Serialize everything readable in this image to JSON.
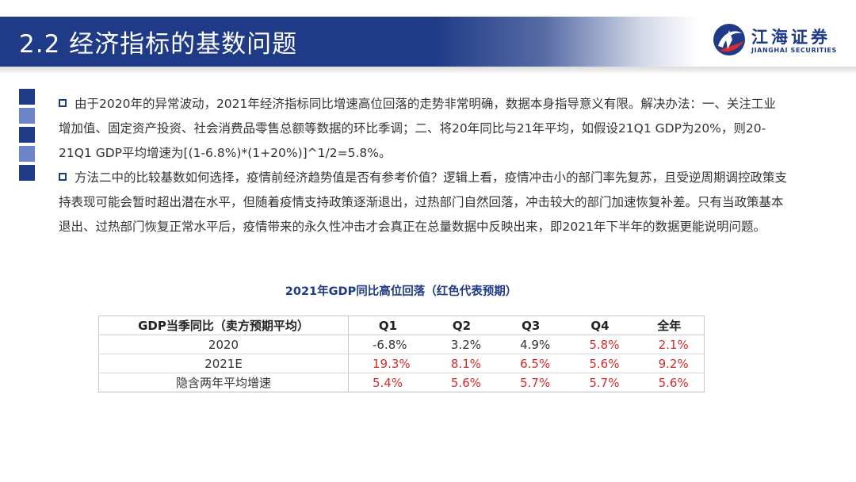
{
  "header": {
    "title": "2.2 经济指标的基数问题",
    "logo_cn": "江海证券",
    "logo_en": "JIANGHAI SECURITIES",
    "brand_color": "#1f3a86"
  },
  "paragraphs": [
    "由于2020年的异常波动，2021年经济指标同比增速高位回落的走势非常明确，数据本身指导意义有限。解决办法：一、关注工业增加值、固定资产投资、社会消费品零售总额等数据的环比季调；二、将20年同比与21年平均，如假设21Q1 GDP为20%，则20-21Q1 GDP平均增速为[(1-6.8%)*(1+20%)]^1/2=5.8%。",
    "方法二中的比较基数如何选择，疫情前经济趋势值是否有参考价值？逻辑上看，疫情冲击小的部门率先复苏，且受逆周期调控政策支持表现可能会暂时超出潜在水平，但随着疫情支持政策逐渐退出，过热部门自然回落，冲击较大的部门加速恢复补差。只有当政策基本退出、过热部门恢复正常水平后，疫情带来的永久性冲击才会真正在总量数据中反映出来，即2021年下半年的数据更能说明问题。"
  ],
  "table": {
    "title": "2021年GDP同比高位回落（红色代表预期）",
    "headers": [
      "GDP当季同比（卖方预期平均）",
      "Q1",
      "Q2",
      "Q3",
      "Q4",
      "全年"
    ],
    "rows": [
      {
        "label": "2020",
        "cells": [
          {
            "v": "-6.8%",
            "red": false
          },
          {
            "v": "3.2%",
            "red": false
          },
          {
            "v": "4.9%",
            "red": false
          },
          {
            "v": "5.8%",
            "red": true
          },
          {
            "v": "2.1%",
            "red": true
          }
        ]
      },
      {
        "label": "2021E",
        "cells": [
          {
            "v": "19.3%",
            "red": true
          },
          {
            "v": "8.1%",
            "red": true
          },
          {
            "v": "6.5%",
            "red": true
          },
          {
            "v": "5.6%",
            "red": true
          },
          {
            "v": "9.2%",
            "red": true
          }
        ]
      },
      {
        "label": "隐含两年平均增速",
        "cells": [
          {
            "v": "5.4%",
            "red": true
          },
          {
            "v": "5.6%",
            "red": true
          },
          {
            "v": "5.7%",
            "red": true
          },
          {
            "v": "5.7%",
            "red": true
          },
          {
            "v": "5.6%",
            "red": true
          }
        ]
      }
    ],
    "expected_color": "#d92b2b"
  }
}
